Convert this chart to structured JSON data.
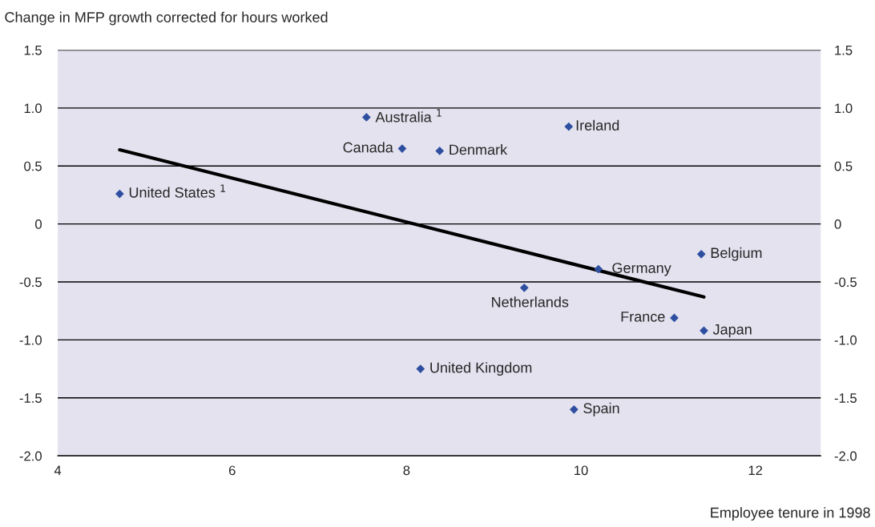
{
  "chart_data": {
    "type": "scatter",
    "ylabel": "Change in MFP growth corrected for hours worked",
    "xlabel": "Employee tenure in 1998",
    "x": [
      4.71,
      7.54,
      7.95,
      8.38,
      9.86,
      9.35,
      10.2,
      11.38,
      11.07,
      11.41,
      8.16,
      9.92
    ],
    "series": [
      {
        "color": "#2e4fa0",
        "marker": "diamond",
        "values": [
          0.26,
          0.92,
          0.65,
          0.63,
          0.84,
          -0.55,
          -0.39,
          -0.26,
          -0.81,
          -0.92,
          -1.25,
          -1.6
        ]
      },
      {
        "type": "line",
        "color": "#000000",
        "line_style": "solid",
        "x": [
          4.71,
          11.41
        ],
        "values": [
          0.64,
          -0.63
        ]
      }
    ],
    "annotations": [
      {
        "text": "United States $^{1}$",
        "x": 4.71,
        "y": 0.26
      },
      {
        "text": "Australia $^{1}$",
        "x": 7.54,
        "y": 0.92
      },
      {
        "text": "Canada",
        "x": 7.95,
        "y": 0.65
      },
      {
        "text": "Denmark",
        "x": 8.38,
        "y": 0.63
      },
      {
        "text": "Ireland",
        "x": 9.86,
        "y": 0.84
      },
      {
        "text": "Netherlands",
        "x": 9.35,
        "y": -0.55
      },
      {
        "text": "Germany",
        "x": 10.2,
        "y": -0.39
      },
      {
        "text": "Belgium",
        "x": 11.38,
        "y": -0.26
      },
      {
        "text": "France",
        "x": 11.07,
        "y": -0.81
      },
      {
        "text": "Japan",
        "x": 11.41,
        "y": -0.92
      },
      {
        "text": "United Kingdom",
        "x": 8.16,
        "y": -1.25
      },
      {
        "text": "Spain",
        "x": 9.92,
        "y": -1.6
      }
    ],
    "xlim": [
      4,
      12.75
    ],
    "xticks": [
      4,
      6,
      8,
      10,
      12
    ],
    "ylim": [
      -2.0,
      1.5
    ],
    "yticks": [
      {
        "value": 1.5,
        "label": "1.5"
      },
      {
        "value": 1.0,
        "label": "1.0"
      },
      {
        "value": 0.5,
        "label": "0.5"
      },
      0,
      {
        "value": -0.5,
        "label": "-0.5"
      },
      {
        "value": -1.0,
        "label": "-1.0"
      },
      {
        "value": -1.5,
        "label": "-1.5"
      },
      {
        "value": -2.0,
        "label": "-2.0"
      }
    ],
    "y2lim": [
      -2.0,
      1.5
    ],
    "y2ticks": [
      {
        "value": 1.5,
        "label": "1.5"
      },
      {
        "value": 1.0,
        "label": "1.0"
      },
      {
        "value": 0.5,
        "label": "0.5"
      },
      0,
      {
        "value": -0.5,
        "label": "-0.5"
      },
      {
        "value": -1.0,
        "label": "-1.0"
      },
      {
        "value": -1.5,
        "label": "-1.5"
      },
      {
        "value": -2.0,
        "label": "-2.0"
      }
    ],
    "grid": "y",
    "legend": false
  }
}
